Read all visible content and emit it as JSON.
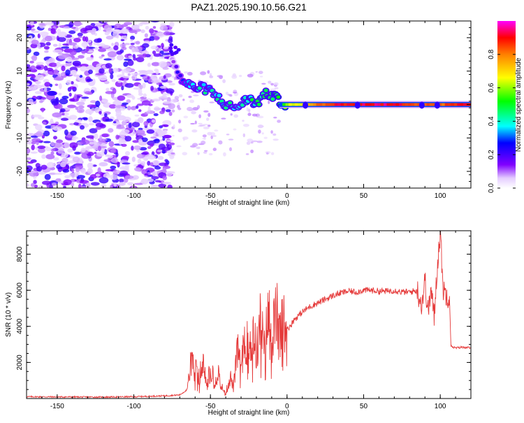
{
  "chart_data": [
    {
      "type": "heatmap",
      "title": "PAZ1.2025.190.10.56.G21",
      "xlabel": "Height of straight line (km)",
      "ylabel": "Frequency (Hz)",
      "xlim": [
        -170,
        120
      ],
      "ylim": [
        -25,
        25
      ],
      "x_ticks": [
        -150,
        -100,
        -50,
        0,
        50,
        100
      ],
      "y_ticks": [
        -20,
        -10,
        0,
        10,
        20
      ],
      "colorbar": {
        "label": "Normalized spectral amplitude",
        "range": [
          0,
          1
        ],
        "ticks": [
          0.0,
          0.2,
          0.4,
          0.6,
          0.8
        ],
        "tick_labels": [
          "0.0",
          "0.2",
          "0.4",
          "0.6",
          "0.8"
        ]
      },
      "ridge": {
        "x": [
          -75,
          -70,
          -65,
          -60,
          -55,
          -50,
          -45,
          -40,
          -35,
          -30,
          -25,
          -20,
          -15,
          -10,
          -5,
          0,
          10,
          20,
          40,
          60,
          80,
          100,
          120
        ],
        "frequency": [
          14,
          8,
          6,
          5,
          5,
          4,
          2,
          0,
          -1,
          0,
          2,
          0,
          3,
          3,
          1,
          0,
          0,
          0,
          0,
          0,
          0,
          0,
          0
        ],
        "amplitude": [
          0.1,
          0.25,
          0.35,
          0.4,
          0.4,
          0.4,
          0.4,
          0.4,
          0.4,
          0.4,
          0.45,
          0.45,
          0.45,
          0.45,
          0.5,
          0.65,
          0.7,
          0.85,
          0.95,
          0.95,
          0.9,
          0.85,
          0.95
        ]
      },
      "noise_region": {
        "x": [
          -170,
          -75
        ],
        "amplitude": [
          0.05,
          0.25
        ]
      }
    },
    {
      "type": "line",
      "title": "",
      "xlabel": "Height of straight line (km)",
      "ylabel": "SNR (10 * v/v)",
      "xlim": [
        -170,
        120
      ],
      "ylim": [
        0,
        9300
      ],
      "x_ticks": [
        -150,
        -100,
        -50,
        0,
        50,
        100
      ],
      "y_ticks": [
        2000,
        4000,
        6000,
        8000
      ],
      "color": "#e53a3a",
      "series": [
        {
          "x": [
            -170,
            -150,
            -120,
            -100,
            -80,
            -70,
            -65,
            -62,
            -58,
            -55,
            -52,
            -50,
            -47,
            -45,
            -42,
            -40,
            -37,
            -35,
            -32,
            -30,
            -27,
            -25,
            -22,
            -20,
            -17,
            -15,
            -12,
            -10,
            -7,
            -5,
            -2,
            0,
            5,
            10,
            15,
            20,
            25,
            30,
            35,
            40,
            45,
            50,
            55,
            60,
            65,
            70,
            75,
            80,
            85,
            88,
            90,
            92,
            94,
            96,
            98,
            100,
            102,
            105,
            106,
            107,
            110,
            115,
            120
          ],
          "y": [
            100,
            90,
            80,
            100,
            150,
            200,
            500,
            2500,
            1000,
            2000,
            600,
            2200,
            900,
            1500,
            500,
            300,
            1200,
            600,
            2800,
            1500,
            3800,
            2200,
            3800,
            2500,
            4500,
            2500,
            4800,
            3200,
            4800,
            3500,
            4200,
            3800,
            4400,
            4800,
            5100,
            5300,
            5500,
            5700,
            5850,
            5950,
            5900,
            6000,
            6000,
            5950,
            5950,
            6000,
            5900,
            5900,
            6000,
            5200,
            6600,
            4800,
            6000,
            4500,
            7300,
            9200,
            6000,
            5700,
            5700,
            2900,
            2800,
            2850,
            2800
          ]
        }
      ]
    }
  ]
}
